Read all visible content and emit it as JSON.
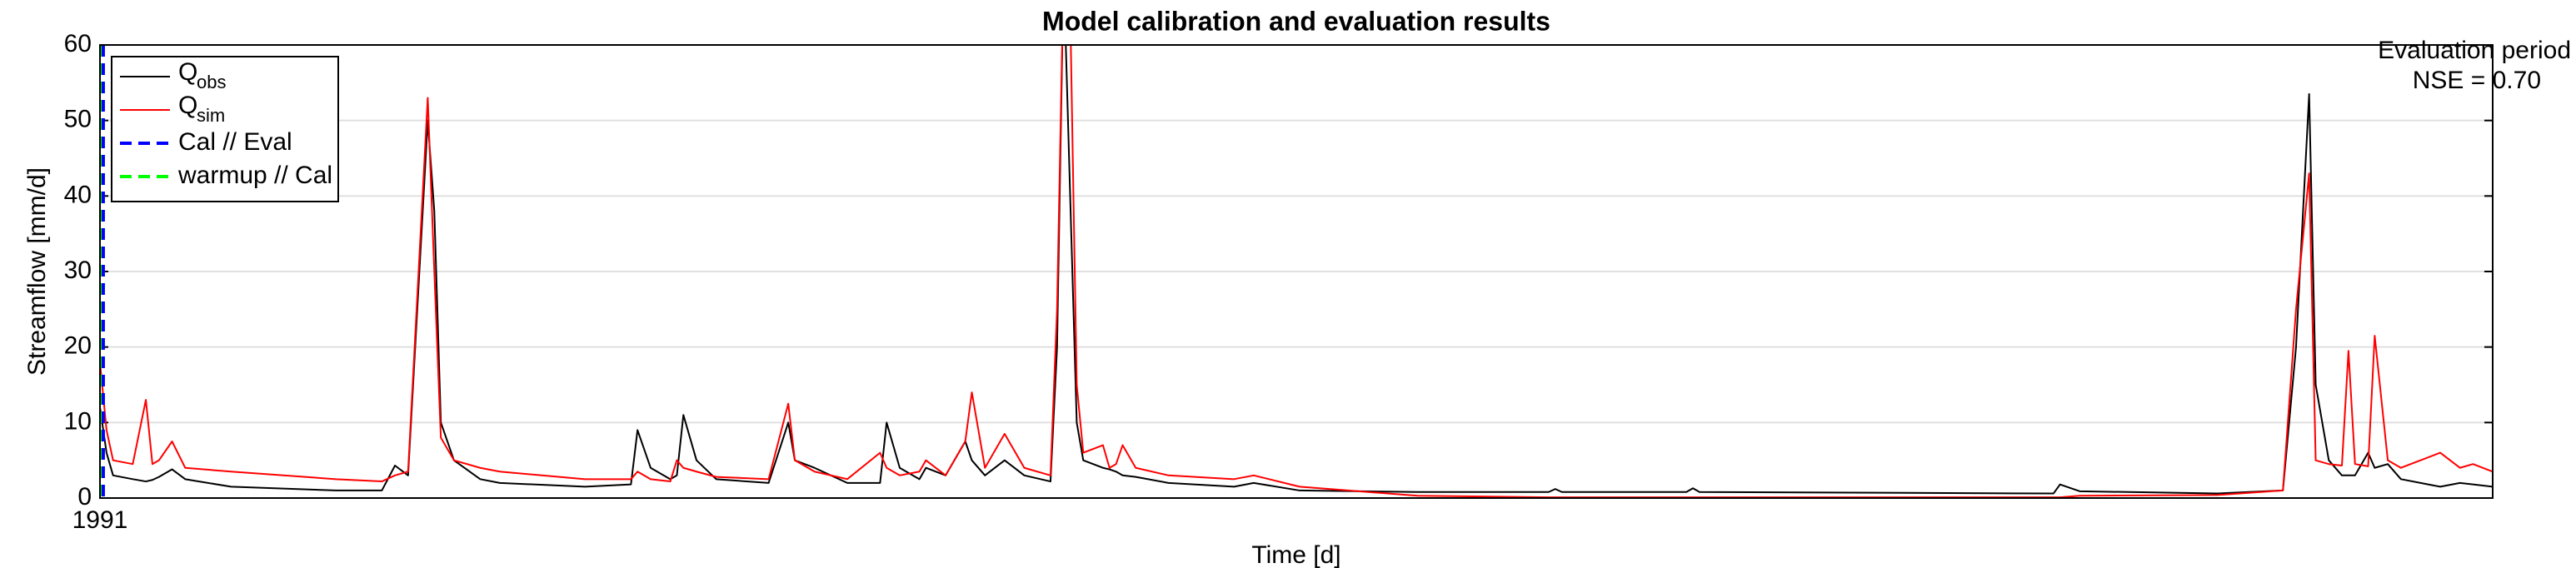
{
  "chart_data": {
    "type": "line",
    "title": "Model calibration and evaluation results",
    "xlabel": "Time [d]",
    "ylabel": "Streamflow [mm/d]",
    "annotation": [
      "Evaluation period",
      "NSE = 0.70"
    ],
    "x": [
      0,
      1,
      2,
      5,
      7,
      8,
      9,
      11,
      13,
      20,
      36,
      43,
      45,
      47,
      50,
      51,
      52,
      54,
      58,
      61,
      74,
      81,
      82,
      84,
      87,
      88,
      89,
      91,
      94,
      102,
      105,
      106,
      109,
      114,
      119,
      120,
      122,
      125,
      126,
      129,
      132,
      133,
      135,
      138,
      141,
      145,
      146,
      147,
      148,
      149,
      150,
      153,
      154,
      155,
      156,
      158,
      163,
      173,
      176,
      183,
      201,
      221,
      222,
      223,
      242,
      243,
      244,
      298,
      299,
      302,
      323,
      333,
      335,
      337,
      338,
      340,
      342,
      343,
      344,
      346,
      347,
      349,
      351,
      357,
      360,
      362,
      365
    ],
    "series": [
      {
        "name": "Q",
        "name_sub": "obs",
        "color": "#000000",
        "values": [
          12,
          6,
          3,
          2.5,
          2.2,
          2.4,
          2.8,
          3.8,
          2.5,
          1.5,
          1,
          1,
          4.3,
          3,
          50,
          38,
          10,
          5,
          2.5,
          2,
          1.5,
          1.8,
          9,
          4,
          2.5,
          3,
          11,
          5,
          2.5,
          2,
          10,
          5,
          4,
          2,
          2,
          10,
          4,
          2.5,
          4,
          3,
          7.5,
          5,
          3,
          5,
          3,
          2.2,
          20,
          70,
          40,
          10,
          5,
          4,
          3.8,
          3.5,
          3,
          2.8,
          2,
          1.5,
          2,
          1,
          0.8,
          0.8,
          1.2,
          0.8,
          0.8,
          1.3,
          0.8,
          0.6,
          1.8,
          0.9,
          0.6,
          1,
          20,
          53.5,
          15,
          5,
          3,
          3,
          3,
          6,
          4,
          4.5,
          2.5,
          1.5,
          2,
          1.8,
          1.5
        ]
      },
      {
        "name": "Q",
        "name_sub": "sim",
        "color": "#ff0000",
        "values": [
          18,
          9,
          5,
          4.5,
          13,
          4.5,
          5,
          7.5,
          4,
          3.5,
          2.5,
          2.2,
          3,
          3.5,
          53,
          30,
          8,
          5,
          4,
          3.5,
          2.5,
          2.5,
          3.5,
          2.5,
          2.2,
          5,
          4,
          3.5,
          2.8,
          2.5,
          12.5,
          5,
          3.5,
          2.5,
          6,
          4,
          3,
          3.5,
          5,
          3,
          7.5,
          14,
          4,
          8.5,
          4,
          3,
          25,
          70,
          65,
          15,
          6,
          7,
          4,
          4.5,
          7,
          4,
          3,
          2.5,
          3,
          1.5,
          0.3,
          0.1,
          0.1,
          0.1,
          0.1,
          0.1,
          0.1,
          0.1,
          0.1,
          0.3,
          0.4,
          1,
          25,
          43,
          5,
          4.5,
          4.3,
          19.5,
          4.5,
          4.2,
          21.5,
          5,
          4,
          6,
          4,
          4.5,
          3.5
        ]
      }
    ],
    "markers": [
      {
        "name": "Cal // Eval",
        "color": "#0000ff",
        "x": 0.5
      },
      {
        "name": "warmup // Cal",
        "color": "#00ff00",
        "x": 0
      }
    ],
    "xlim": [
      0,
      365
    ],
    "xticks": [
      {
        "value": 0,
        "label": "1991"
      }
    ],
    "ylim": [
      0,
      60
    ],
    "yticks": [
      0,
      10,
      20,
      30,
      40,
      50,
      60
    ],
    "grid": true,
    "legend": "upper left"
  }
}
